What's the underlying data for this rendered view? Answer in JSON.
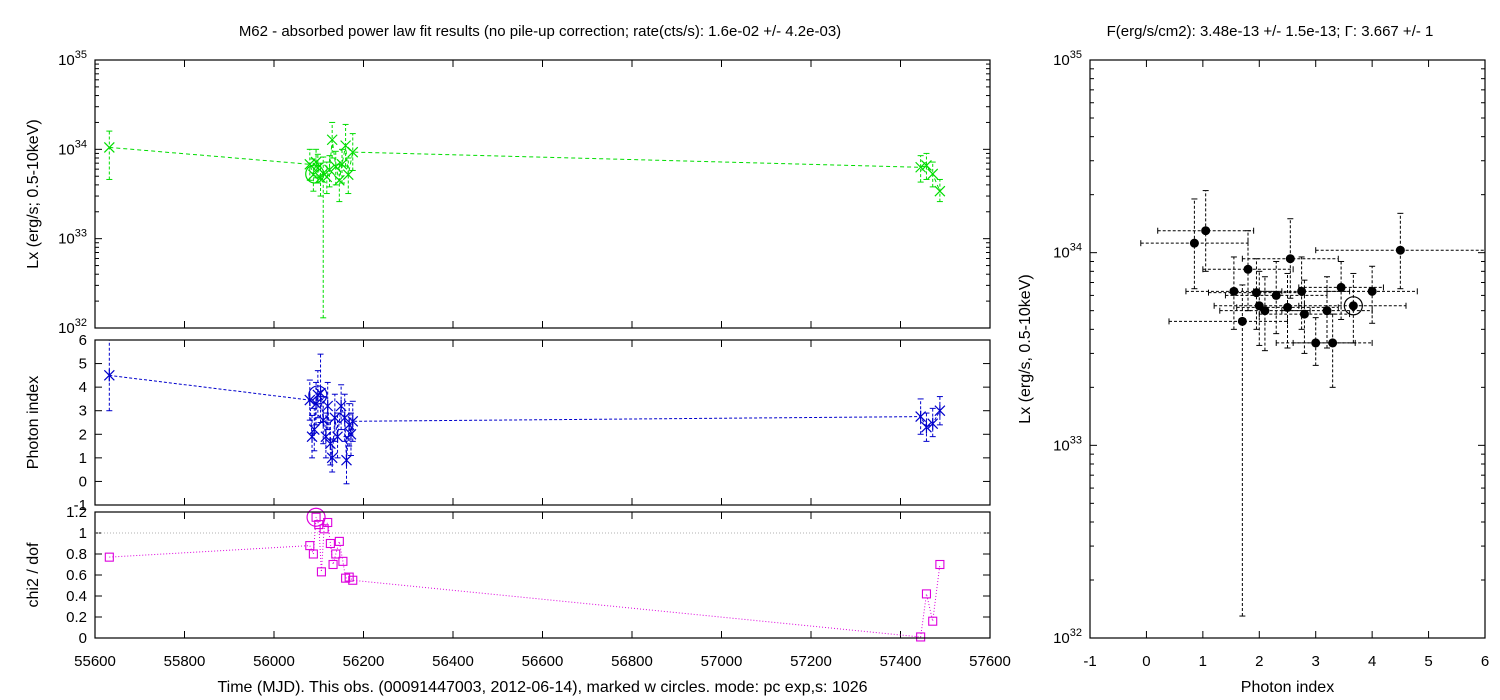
{
  "titles": {
    "left": "M62  - absorbed power law fit results (no pile-up correction; rate(cts/s): 1.6e-02 +/- 4.2e-03)",
    "right": "F(erg/s/cm2): 3.48e-13 +/- 1.5e-13; Γ: 3.667 +/- 1"
  },
  "colors": {
    "lx": "#00dd00",
    "photon_index": "#0000cc",
    "chi2": "#dd00dd",
    "scatter": "#000000",
    "reference_line": "#b0b0b0"
  },
  "chart_data": [
    {
      "id": "lx_vs_time",
      "type": "line",
      "ylabel": "Lx (erg/s; 0.5-10keV)",
      "xlim": [
        55600,
        57600
      ],
      "ylim": [
        1e+32,
        1e+35
      ],
      "yscale": "log",
      "y_ticks": [
        {
          "value": 1e+32,
          "label": "10",
          "exp": "32"
        },
        {
          "value": 1e+33,
          "label": "10",
          "exp": "33"
        },
        {
          "value": 1e+34,
          "label": "10",
          "exp": "34"
        },
        {
          "value": 1e+35,
          "label": "10",
          "exp": "35"
        }
      ],
      "marker": "x",
      "points": [
        {
          "x": 55632,
          "y": 1.05e+34,
          "ylo": 4.6e+33,
          "yhi": 1.6e+34
        },
        {
          "x": 56080,
          "y": 6.8e+33,
          "ylo": 4.5e+33,
          "yhi": 1e+34
        },
        {
          "x": 56088,
          "y": 5.2e+33,
          "ylo": 3.4e+33,
          "yhi": 7.8e+33
        },
        {
          "x": 56094,
          "y": 7.2e+33,
          "ylo": 4.8e+33,
          "yhi": 1e+34
        },
        {
          "x": 56098,
          "y": 6.2e+33,
          "ylo": 4.2e+33,
          "yhi": 8.8e+33
        },
        {
          "x": 56104,
          "y": 4.8e+33,
          "ylo": 3e+33,
          "yhi": 7e+33
        },
        {
          "x": 56110,
          "y": 5.4e+33,
          "ylo": 1.3e+32,
          "yhi": 8.2e+33
        },
        {
          "x": 56118,
          "y": 4.9e+33,
          "ylo": 3.2e+33,
          "yhi": 7.2e+33
        },
        {
          "x": 56124,
          "y": 5.9e+33,
          "ylo": 3.8e+33,
          "yhi": 8.5e+33
        },
        {
          "x": 56130,
          "y": 1.28e+34,
          "ylo": 8e+33,
          "yhi": 2e+34
        },
        {
          "x": 56138,
          "y": 6.4e+33,
          "ylo": 4e+33,
          "yhi": 9.5e+33
        },
        {
          "x": 56146,
          "y": 4.5e+33,
          "ylo": 2.6e+33,
          "yhi": 6.8e+33
        },
        {
          "x": 56152,
          "y": 6.8e+33,
          "ylo": 4.2e+33,
          "yhi": 1e+34
        },
        {
          "x": 56160,
          "y": 1.1e+34,
          "ylo": 6.5e+33,
          "yhi": 1.9e+34
        },
        {
          "x": 56166,
          "y": 5.2e+33,
          "ylo": 3.2e+33,
          "yhi": 8e+33
        },
        {
          "x": 56176,
          "y": 9.3e+33,
          "ylo": 5.8e+33,
          "yhi": 1.5e+34
        },
        {
          "x": 57445,
          "y": 6.3e+33,
          "ylo": 4.3e+33,
          "yhi": 8.5e+33
        },
        {
          "x": 57458,
          "y": 6.6e+33,
          "ylo": 4.6e+33,
          "yhi": 9e+33
        },
        {
          "x": 57472,
          "y": 5.3e+33,
          "ylo": 3.8e+33,
          "yhi": 7.2e+33
        },
        {
          "x": 57488,
          "y": 3.4e+33,
          "ylo": 2.6e+33,
          "yhi": 4.6e+33
        }
      ],
      "current_obs": {
        "x": 56091,
        "y": 5.3e+33
      }
    },
    {
      "id": "photon_index_vs_time",
      "type": "line",
      "ylabel": "Photon index",
      "xlim": [
        55600,
        57600
      ],
      "ylim": [
        -1,
        6
      ],
      "y_ticks": [
        {
          "value": -1,
          "label": "-1"
        },
        {
          "value": 0,
          "label": "0"
        },
        {
          "value": 1,
          "label": "1"
        },
        {
          "value": 2,
          "label": "2"
        },
        {
          "value": 3,
          "label": "3"
        },
        {
          "value": 4,
          "label": "4"
        },
        {
          "value": 5,
          "label": "5"
        },
        {
          "value": 6,
          "label": "6"
        }
      ],
      "marker": "asterisk",
      "points": [
        {
          "x": 55632,
          "y": 4.5,
          "ylo": 3.0,
          "yhi": 6.0
        },
        {
          "x": 56080,
          "y": 3.45,
          "ylo": 2.6,
          "yhi": 4.3
        },
        {
          "x": 56085,
          "y": 1.9,
          "ylo": 1.0,
          "yhi": 2.8
        },
        {
          "x": 56090,
          "y": 2.2,
          "ylo": 1.3,
          "yhi": 3.1
        },
        {
          "x": 56094,
          "y": 3.3,
          "ylo": 2.4,
          "yhi": 4.2
        },
        {
          "x": 56098,
          "y": 3.67,
          "ylo": 2.7,
          "yhi": 4.7
        },
        {
          "x": 56104,
          "y": 3.75,
          "ylo": 2.5,
          "yhi": 5.4
        },
        {
          "x": 56110,
          "y": 2.6,
          "ylo": 1.6,
          "yhi": 3.6
        },
        {
          "x": 56116,
          "y": 1.9,
          "ylo": 1.0,
          "yhi": 2.9
        },
        {
          "x": 56120,
          "y": 3.2,
          "ylo": 2.2,
          "yhi": 4.2
        },
        {
          "x": 56126,
          "y": 1.6,
          "ylo": 0.7,
          "yhi": 2.6
        },
        {
          "x": 56130,
          "y": 1.0,
          "ylo": 0.4,
          "yhi": 1.8
        },
        {
          "x": 56136,
          "y": 2.7,
          "ylo": 1.7,
          "yhi": 3.7
        },
        {
          "x": 56142,
          "y": 1.9,
          "ylo": 1.0,
          "yhi": 2.9
        },
        {
          "x": 56150,
          "y": 3.2,
          "ylo": 2.2,
          "yhi": 4.1
        },
        {
          "x": 56158,
          "y": 2.7,
          "ylo": 1.7,
          "yhi": 3.7
        },
        {
          "x": 56162,
          "y": 0.9,
          "ylo": -0.1,
          "yhi": 1.9
        },
        {
          "x": 56168,
          "y": 2.4,
          "ylo": 1.5,
          "yhi": 3.3
        },
        {
          "x": 56172,
          "y": 2.0,
          "ylo": 1.1,
          "yhi": 2.9
        },
        {
          "x": 56176,
          "y": 2.55,
          "ylo": 1.7,
          "yhi": 3.4
        },
        {
          "x": 57445,
          "y": 2.75,
          "ylo": 2.0,
          "yhi": 3.5
        },
        {
          "x": 57458,
          "y": 2.3,
          "ylo": 1.7,
          "yhi": 2.9
        },
        {
          "x": 57472,
          "y": 2.45,
          "ylo": 1.9,
          "yhi": 3.1
        },
        {
          "x": 57488,
          "y": 3.0,
          "ylo": 2.4,
          "yhi": 3.6
        }
      ],
      "current_obs": {
        "x": 56098,
        "y": 3.67
      }
    },
    {
      "id": "chi2_vs_time",
      "type": "line",
      "ylabel": "chi2 / dof",
      "xlabel": "Time (MJD). This obs. (00091447003, 2012-06-14), marked w circles. mode: pc exp,s: 1026",
      "xlim": [
        55600,
        57600
      ],
      "ylim": [
        0,
        1.2
      ],
      "x_ticks": [
        55600,
        55800,
        56000,
        56200,
        56400,
        56600,
        56800,
        57000,
        57200,
        57400,
        57600
      ],
      "y_ticks": [
        {
          "value": 0,
          "label": "0"
        },
        {
          "value": 0.2,
          "label": "0.2"
        },
        {
          "value": 0.4,
          "label": "0.4"
        },
        {
          "value": 0.6,
          "label": "0.6"
        },
        {
          "value": 0.8,
          "label": "0.8"
        },
        {
          "value": 1.0,
          "label": "1"
        },
        {
          "value": 1.2,
          "label": "1.2"
        }
      ],
      "reference_y": 1.0,
      "marker": "square",
      "points": [
        {
          "x": 55632,
          "y": 0.77
        },
        {
          "x": 56080,
          "y": 0.88
        },
        {
          "x": 56088,
          "y": 0.8
        },
        {
          "x": 56094,
          "y": 1.15
        },
        {
          "x": 56100,
          "y": 1.08
        },
        {
          "x": 56106,
          "y": 0.63
        },
        {
          "x": 56112,
          "y": 1.04
        },
        {
          "x": 56120,
          "y": 1.1
        },
        {
          "x": 56126,
          "y": 0.9
        },
        {
          "x": 56132,
          "y": 0.7
        },
        {
          "x": 56138,
          "y": 0.8
        },
        {
          "x": 56146,
          "y": 0.92
        },
        {
          "x": 56154,
          "y": 0.73
        },
        {
          "x": 56160,
          "y": 0.57
        },
        {
          "x": 56168,
          "y": 0.58
        },
        {
          "x": 56176,
          "y": 0.55
        },
        {
          "x": 57445,
          "y": 0.01
        },
        {
          "x": 57458,
          "y": 0.42
        },
        {
          "x": 57472,
          "y": 0.16
        },
        {
          "x": 57488,
          "y": 0.7
        }
      ],
      "current_obs": {
        "x": 56094,
        "y": 1.15
      }
    },
    {
      "id": "lx_vs_photon_index",
      "type": "scatter",
      "xlabel": "Photon index",
      "ylabel": "Lx (erg/s, 0.5-10keV)",
      "xlim": [
        -1,
        6
      ],
      "ylim": [
        1e+32,
        1e+35
      ],
      "yscale": "log",
      "x_ticks": [
        -1,
        0,
        1,
        2,
        3,
        4,
        5,
        6
      ],
      "y_ticks": [
        {
          "value": 1e+32,
          "label": "10",
          "exp": "32"
        },
        {
          "value": 1e+33,
          "label": "10",
          "exp": "33"
        },
        {
          "value": 1e+34,
          "label": "10",
          "exp": "34"
        },
        {
          "value": 1e+35,
          "label": "10",
          "exp": "35"
        }
      ],
      "points": [
        {
          "x": 0.85,
          "y": 1.12e+34,
          "xlo": -0.1,
          "xhi": 1.8,
          "ylo": 6.5e+33,
          "yhi": 1.9e+34
        },
        {
          "x": 1.05,
          "y": 1.3e+34,
          "xlo": 0.2,
          "xhi": 1.9,
          "ylo": 8e+33,
          "yhi": 2.1e+34
        },
        {
          "x": 4.5,
          "y": 1.03e+34,
          "xlo": 3.0,
          "xhi": 6.0,
          "ylo": 6.5e+33,
          "yhi": 1.6e+34
        },
        {
          "x": 1.8,
          "y": 8.2e+33,
          "xlo": 1.0,
          "xhi": 2.6,
          "ylo": 5e+33,
          "yhi": 1.3e+34
        },
        {
          "x": 2.55,
          "y": 9.3e+33,
          "xlo": 1.7,
          "xhi": 3.4,
          "ylo": 5.8e+33,
          "yhi": 1.5e+34
        },
        {
          "x": 1.55,
          "y": 6.3e+33,
          "xlo": 0.7,
          "xhi": 2.4,
          "ylo": 4e+33,
          "yhi": 9.5e+33
        },
        {
          "x": 1.95,
          "y": 6.2e+33,
          "xlo": 1.1,
          "xhi": 2.8,
          "ylo": 4e+33,
          "yhi": 9.3e+33
        },
        {
          "x": 2.3,
          "y": 6e+33,
          "xlo": 1.4,
          "xhi": 3.2,
          "ylo": 3.8e+33,
          "yhi": 9e+33
        },
        {
          "x": 2.75,
          "y": 6.3e+33,
          "xlo": 1.9,
          "xhi": 3.6,
          "ylo": 4e+33,
          "yhi": 9.5e+33
        },
        {
          "x": 3.45,
          "y": 6.6e+33,
          "xlo": 2.7,
          "xhi": 4.2,
          "ylo": 4.5e+33,
          "yhi": 9e+33
        },
        {
          "x": 4.0,
          "y": 6.3e+33,
          "xlo": 3.2,
          "xhi": 4.8,
          "ylo": 4.3e+33,
          "yhi": 8.5e+33
        },
        {
          "x": 2.0,
          "y": 5.3e+33,
          "xlo": 1.2,
          "xhi": 2.8,
          "ylo": 3.3e+33,
          "yhi": 8e+33
        },
        {
          "x": 2.1,
          "y": 5e+33,
          "xlo": 1.3,
          "xhi": 2.9,
          "ylo": 3.1e+33,
          "yhi": 7.5e+33
        },
        {
          "x": 2.5,
          "y": 5.2e+33,
          "xlo": 1.6,
          "xhi": 3.4,
          "ylo": 3.2e+33,
          "yhi": 7.8e+33
        },
        {
          "x": 2.8,
          "y": 4.8e+33,
          "xlo": 2.0,
          "xhi": 3.6,
          "ylo": 3e+33,
          "yhi": 7.2e+33
        },
        {
          "x": 3.2,
          "y": 5e+33,
          "xlo": 2.4,
          "xhi": 4.0,
          "ylo": 3.2e+33,
          "yhi": 7.5e+33
        },
        {
          "x": 1.7,
          "y": 4.4e+33,
          "xlo": 0.4,
          "xhi": 2.5,
          "ylo": 1.3e+32,
          "yhi": 6.8e+33
        },
        {
          "x": 3.0,
          "y": 3.4e+33,
          "xlo": 2.3,
          "xhi": 3.7,
          "ylo": 2.6e+33,
          "yhi": 4.6e+33
        },
        {
          "x": 3.3,
          "y": 3.4e+33,
          "xlo": 2.6,
          "xhi": 4.0,
          "ylo": 2e+33,
          "yhi": 4.8e+33
        },
        {
          "x": 3.667,
          "y": 5.3e+33,
          "xlo": 2.7,
          "xhi": 4.6,
          "ylo": 3.4e+33,
          "yhi": 7.8e+33
        }
      ],
      "current_obs": {
        "x": 3.667,
        "y": 5.3e+33
      }
    }
  ]
}
